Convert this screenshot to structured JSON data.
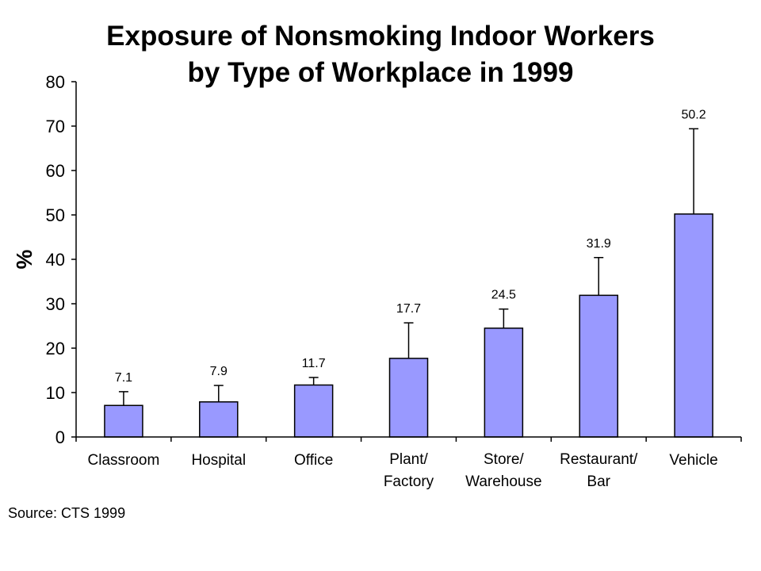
{
  "chart_data": {
    "type": "bar",
    "title_lines": [
      "Exposure of Nonsmoking Indoor Workers",
      "by Type of Workplace in 1999"
    ],
    "ylabel": "%",
    "xlabel": "",
    "ylim": [
      0,
      80
    ],
    "yticks": [
      0,
      10,
      20,
      30,
      40,
      50,
      60,
      70,
      80
    ],
    "grid": false,
    "legend": "none",
    "bar_color": "#9999ff",
    "categories": [
      [
        "Classroom"
      ],
      [
        "Hospital"
      ],
      [
        "Office"
      ],
      [
        "Plant/",
        "Factory"
      ],
      [
        "Store/",
        "Warehouse"
      ],
      [
        "Restaurant/",
        "Bar"
      ],
      [
        "Vehicle"
      ]
    ],
    "values": [
      7.1,
      7.9,
      11.7,
      17.7,
      24.5,
      31.9,
      50.2
    ],
    "value_labels": [
      "7.1",
      "7.9",
      "11.7",
      "17.7",
      "24.5",
      "31.9",
      "50.2"
    ],
    "error_upper": [
      10.2,
      11.6,
      13.4,
      25.7,
      28.8,
      40.4,
      69.4
    ]
  },
  "source": "Source: CTS 1999"
}
